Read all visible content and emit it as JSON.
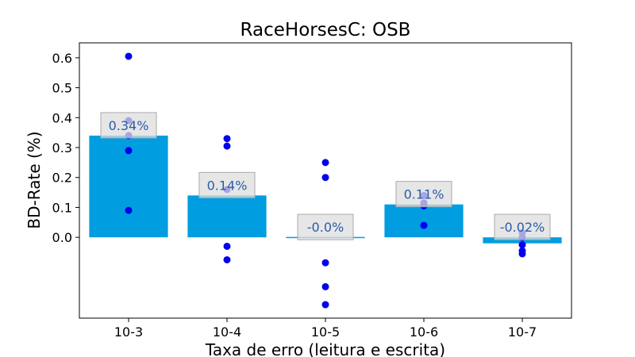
{
  "chart_data": {
    "type": "bar",
    "title": "RaceHorsesC: OSB",
    "xlabel": "Taxa de erro (leitura e escrita)",
    "ylabel": "BD-Rate (%)",
    "categories": [
      "10-3",
      "10-4",
      "10-5",
      "10-6",
      "10-7"
    ],
    "values": [
      0.34,
      0.14,
      -0.0,
      0.11,
      -0.02
    ],
    "value_labels": [
      "0.34%",
      "0.14%",
      "-0.0%",
      "0.11%",
      "-0.02%"
    ],
    "points": [
      [
        0.605,
        0.39,
        0.34,
        0.29,
        0.09
      ],
      [
        0.33,
        0.305,
        0.16,
        -0.03,
        -0.075
      ],
      [
        0.25,
        0.2,
        -0.085,
        -0.165,
        -0.225
      ],
      [
        0.14,
        0.115,
        0.105,
        0.04
      ],
      [
        0.015,
        0.0,
        -0.025,
        -0.045,
        -0.055
      ]
    ],
    "yticks": [
      "0.0",
      "0.1",
      "0.2",
      "0.3",
      "0.4",
      "0.5",
      "0.6"
    ],
    "ylim": [
      -0.27,
      0.65
    ],
    "colors": {
      "bar": "#009de0",
      "point": "#0000ee",
      "label_box": "#dddddd",
      "label_text": "#2a5caa"
    },
    "grid": false,
    "legend": "none"
  }
}
